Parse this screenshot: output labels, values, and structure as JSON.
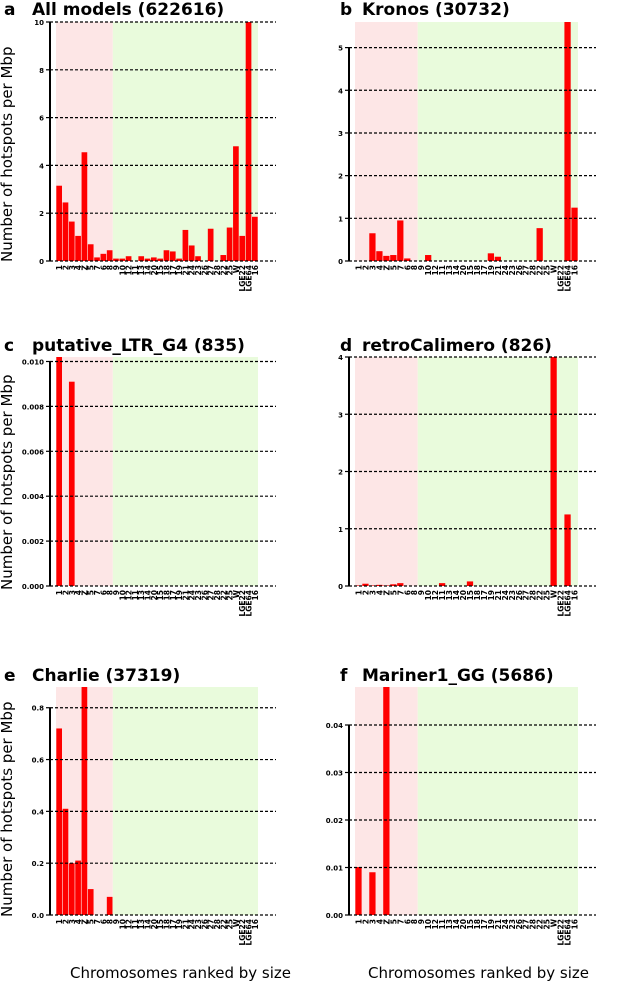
{
  "figure": {
    "ylabel": "Number of hotspots  per Mbp",
    "xlabel": "Chromosomes ranked by size",
    "colors": {
      "bar": "#ff0000",
      "macro_bg": "#fde6e6",
      "micro_bg": "#e9fbdc",
      "grid": "#000000"
    }
  },
  "chart_data": [
    {
      "id": "a",
      "type": "bar",
      "letter": "a",
      "title": "All models (622616)",
      "categories": [
        "1",
        "2",
        "3",
        "4",
        "Z",
        "5",
        "7",
        "6",
        "8",
        "9",
        "10",
        "12",
        "11",
        "13",
        "14",
        "20",
        "15",
        "18",
        "17",
        "19",
        "21",
        "24",
        "23",
        "26",
        "27",
        "28",
        "22",
        "25",
        "W",
        "LGE22",
        "LGE64",
        "16"
      ],
      "values": [
        3.15,
        2.45,
        1.65,
        1.05,
        4.55,
        0.7,
        0.15,
        0.3,
        0.45,
        0.1,
        0.1,
        0.2,
        0.0,
        0.2,
        0.1,
        0.15,
        0.1,
        0.45,
        0.4,
        0.1,
        1.3,
        0.65,
        0.2,
        0.0,
        1.35,
        0.0,
        0.25,
        1.4,
        4.8,
        1.05,
        10.0,
        1.85
      ],
      "xlabel": "",
      "ylabel": "Number of hotspots  per Mbp",
      "ylim": [
        0,
        10
      ],
      "yticks": [
        "0",
        "2",
        "4",
        "6",
        "8",
        "10"
      ],
      "ytick_values": [
        0,
        2,
        4,
        6,
        8,
        10
      ],
      "grid": true,
      "macro_region_count": 9
    },
    {
      "id": "b",
      "type": "bar",
      "letter": "b",
      "title": "Kronos (30732)",
      "categories": [
        "1",
        "2",
        "3",
        "4",
        "Z",
        "5",
        "7",
        "6",
        "8",
        "9",
        "10",
        "12",
        "11",
        "13",
        "14",
        "20",
        "15",
        "18",
        "17",
        "19",
        "21",
        "24",
        "23",
        "26",
        "27",
        "28",
        "22",
        "25",
        "W",
        "LGE22",
        "LGE64",
        "16"
      ],
      "values": [
        0,
        0,
        0.65,
        0.23,
        0.12,
        0.14,
        0.95,
        0.06,
        0,
        0,
        0.14,
        0,
        0,
        0,
        0,
        0,
        0,
        0,
        0,
        0.18,
        0.1,
        0,
        0,
        0,
        0,
        0,
        0.77,
        0,
        0,
        0,
        5.6,
        1.25
      ],
      "xlabel": "",
      "ylabel": "",
      "ylim": [
        0,
        5.6
      ],
      "yticks": [
        "0",
        "1",
        "2",
        "3",
        "4",
        "5"
      ],
      "ytick_values": [
        0,
        1,
        2,
        3,
        4,
        5
      ],
      "grid": true,
      "macro_region_count": 9
    },
    {
      "id": "c",
      "type": "bar",
      "letter": "c",
      "title": "putative_LTR_G4 (835)",
      "categories": [
        "1",
        "2",
        "3",
        "4",
        "Z",
        "5",
        "7",
        "6",
        "8",
        "9",
        "10",
        "12",
        "11",
        "13",
        "14",
        "20",
        "15",
        "18",
        "17",
        "19",
        "21",
        "24",
        "23",
        "26",
        "27",
        "28",
        "22",
        "25",
        "W",
        "LGE22",
        "LGE64",
        "16"
      ],
      "values": [
        0.0102,
        0,
        0.0091,
        0,
        0,
        0,
        0,
        0,
        0,
        0,
        0,
        0,
        0,
        0,
        0,
        0,
        0,
        0,
        0,
        0,
        0,
        0,
        0,
        0,
        0,
        0,
        0,
        0,
        0,
        0,
        0,
        0
      ],
      "xlabel": "",
      "ylabel": "Number of hotspots  per Mbp",
      "ylim": [
        0,
        0.0102
      ],
      "yticks": [
        "0.000",
        "0.002",
        "0.004",
        "0.006",
        "0.008",
        "0.010"
      ],
      "ytick_values": [
        0,
        0.002,
        0.004,
        0.006,
        0.008,
        0.01
      ],
      "grid": true,
      "macro_region_count": 9
    },
    {
      "id": "d",
      "type": "bar",
      "letter": "d",
      "title": "retroCalimero (826)",
      "categories": [
        "1",
        "2",
        "3",
        "4",
        "Z",
        "5",
        "7",
        "6",
        "8",
        "9",
        "10",
        "12",
        "11",
        "13",
        "14",
        "20",
        "15",
        "18",
        "17",
        "19",
        "21",
        "24",
        "23",
        "26",
        "27",
        "28",
        "22",
        "25",
        "W",
        "LGE22",
        "LGE64",
        "16"
      ],
      "values": [
        0.01,
        0.04,
        0.01,
        0.02,
        0.01,
        0.03,
        0.05,
        0,
        0,
        0,
        0,
        0,
        0.05,
        0,
        0,
        0,
        0.08,
        0,
        0,
        0,
        0,
        0,
        0,
        0,
        0,
        0,
        0,
        0,
        4.0,
        0,
        1.25,
        0
      ],
      "xlabel": "",
      "ylabel": "",
      "ylim": [
        0,
        4
      ],
      "yticks": [
        "0",
        "1",
        "2",
        "3",
        "4"
      ],
      "ytick_values": [
        0,
        1,
        2,
        3,
        4
      ],
      "grid": true,
      "macro_region_count": 9
    },
    {
      "id": "e",
      "type": "bar",
      "letter": "e",
      "title": "Charlie (37319)",
      "categories": [
        "1",
        "2",
        "3",
        "4",
        "Z",
        "5",
        "7",
        "6",
        "8",
        "9",
        "10",
        "12",
        "11",
        "13",
        "14",
        "20",
        "15",
        "18",
        "17",
        "19",
        "21",
        "24",
        "23",
        "26",
        "27",
        "28",
        "22",
        "25",
        "W",
        "LGE22",
        "LGE64",
        "16"
      ],
      "values": [
        0.72,
        0.41,
        0.2,
        0.21,
        0.88,
        0.1,
        0,
        0,
        0.07,
        0,
        0,
        0,
        0,
        0,
        0,
        0,
        0,
        0,
        0,
        0,
        0,
        0,
        0,
        0,
        0,
        0,
        0,
        0,
        0,
        0,
        0,
        0
      ],
      "xlabel": "Chromosomes ranked by size",
      "ylabel": "Number of hotspots  per Mbp",
      "ylim": [
        0,
        0.88
      ],
      "yticks": [
        "0.0",
        "0.2",
        "0.4",
        "0.6",
        "0.8"
      ],
      "ytick_values": [
        0,
        0.2,
        0.4,
        0.6,
        0.8
      ],
      "grid": true,
      "macro_region_count": 9
    },
    {
      "id": "f",
      "type": "bar",
      "letter": "f",
      "title": "Mariner1_GG (5686)",
      "categories": [
        "1",
        "2",
        "3",
        "4",
        "Z",
        "5",
        "7",
        "6",
        "8",
        "9",
        "10",
        "12",
        "11",
        "13",
        "14",
        "20",
        "15",
        "18",
        "17",
        "19",
        "21",
        "24",
        "23",
        "26",
        "27",
        "28",
        "22",
        "25",
        "W",
        "LGE22",
        "LGE64",
        "16"
      ],
      "values": [
        0.0101,
        0,
        0.009,
        0,
        0.048,
        0,
        0,
        0,
        0,
        0,
        0,
        0,
        0,
        0,
        0,
        0,
        0,
        0,
        0,
        0,
        0,
        0,
        0,
        0,
        0,
        0,
        0,
        0,
        0,
        0,
        0,
        0
      ],
      "xlabel": "Chromosomes ranked by size",
      "ylabel": "",
      "ylim": [
        0,
        0.048
      ],
      "yticks": [
        "0.00",
        "0.01",
        "0.02",
        "0.03",
        "0.04"
      ],
      "ytick_values": [
        0,
        0.01,
        0.02,
        0.03,
        0.04
      ],
      "grid": true,
      "macro_region_count": 9
    }
  ]
}
